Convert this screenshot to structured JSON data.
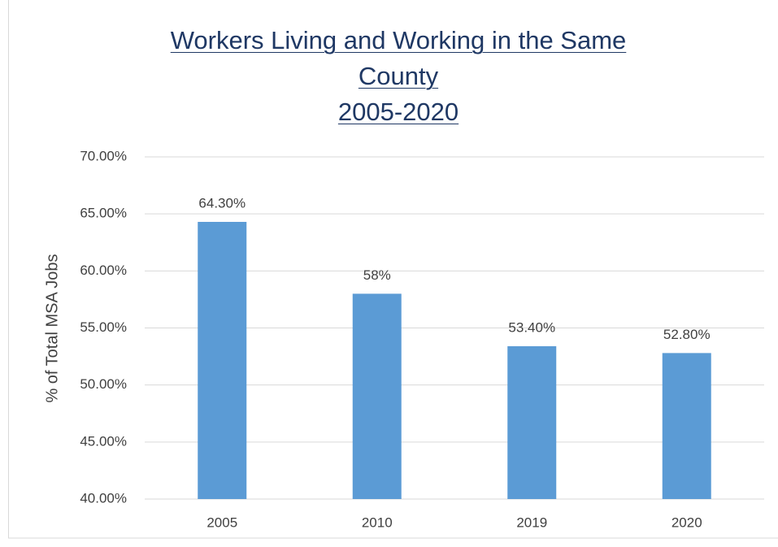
{
  "chart_data": {
    "type": "bar",
    "title": "Workers Living and Working in the Same County",
    "subtitle": "2005-2020",
    "y_label": "% of Total MSA Jobs",
    "categories": [
      "2005",
      "2010",
      "2019",
      "2020"
    ],
    "values": [
      64.3,
      58,
      53.4,
      52.8
    ],
    "value_labels": [
      "64.30%",
      "58%",
      "53.40%",
      "52.80%"
    ],
    "color": "#5b9bd5",
    "ylim": [
      40,
      70
    ],
    "yticks": [
      {
        "value": 40,
        "label": "40.00%"
      },
      {
        "value": 45,
        "label": "45.00%"
      },
      {
        "value": 50,
        "label": "50.00%"
      },
      {
        "value": 55,
        "label": "55.00%"
      },
      {
        "value": 60,
        "label": "60.00%"
      },
      {
        "value": 65,
        "label": "65.00%"
      },
      {
        "value": 70,
        "label": "70.00%"
      }
    ],
    "grid": true
  }
}
